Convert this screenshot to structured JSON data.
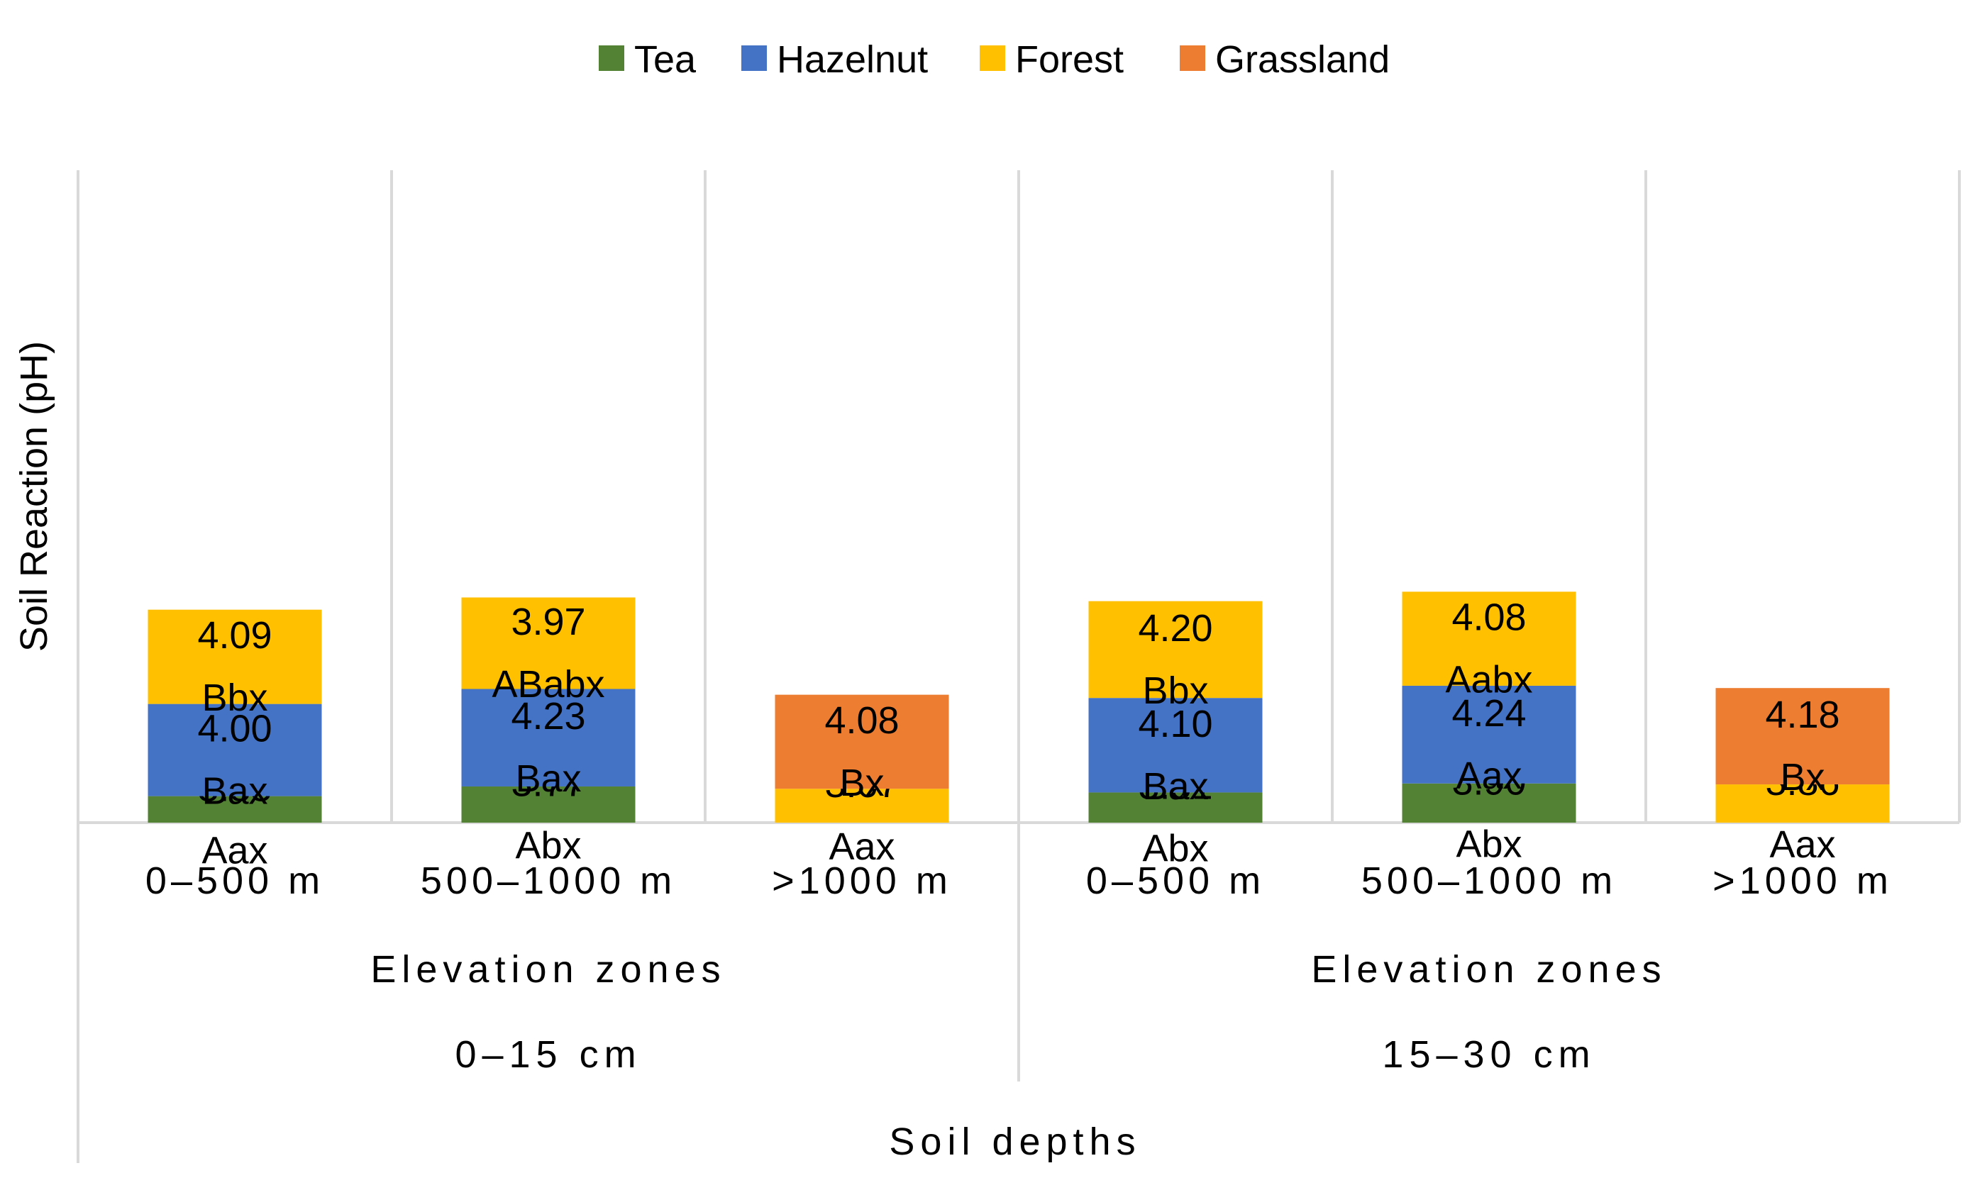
{
  "chart_data": {
    "type": "bar",
    "stacked": true,
    "ylabel": "Soil Reaction (pH)",
    "xlabel": "Soil depths",
    "legend": {
      "placement": "top-center",
      "entries": [
        {
          "name": "Tea",
          "color": "#548235"
        },
        {
          "name": "Hazelnut",
          "color": "#4472C4"
        },
        {
          "name": "Forest",
          "color": "#FFC000"
        },
        {
          "name": "Grassland",
          "color": "#ED7D31"
        }
      ]
    },
    "grid": false,
    "groups": [
      {
        "depth": "0–15 cm",
        "zone_title": "Elevation zones",
        "categories": [
          {
            "label": "0–500 m",
            "segments": [
              {
                "series": "Tea",
                "value": 3.35,
                "value_label": "3.35",
                "letters": "Aax"
              },
              {
                "series": "Hazelnut",
                "value": 4.0,
                "value_label": "4.00",
                "letters": "Bax"
              },
              {
                "series": "Forest",
                "value": 4.09,
                "value_label": "4.09",
                "letters": "Bbx"
              }
            ]
          },
          {
            "label": "500–1000 m",
            "segments": [
              {
                "series": "Tea",
                "value": 3.77,
                "value_label": "3.77",
                "letters": "Abx"
              },
              {
                "series": "Hazelnut",
                "value": 4.23,
                "value_label": "4.23",
                "letters": "Bax"
              },
              {
                "series": "Forest",
                "value": 3.97,
                "value_label": "3.97",
                "letters": "ABabx"
              }
            ]
          },
          {
            "label": ">1000 m",
            "segments": [
              {
                "series": "Forest",
                "value": 3.67,
                "value_label": "3.67",
                "letters": "Aax"
              },
              {
                "series": "Grassland",
                "value": 4.08,
                "value_label": "4.08",
                "letters": "Bx"
              }
            ]
          }
        ]
      },
      {
        "depth": "15–30 cm",
        "zone_title": "Elevation zones",
        "categories": [
          {
            "label": "0–500 m",
            "segments": [
              {
                "series": "Tea",
                "value": 3.51,
                "value_label": "3.51",
                "letters": "Abx"
              },
              {
                "series": "Hazelnut",
                "value": 4.1,
                "value_label": "4.10",
                "letters": "Bax"
              },
              {
                "series": "Forest",
                "value": 4.2,
                "value_label": "4.20",
                "letters": "Bbx"
              }
            ]
          },
          {
            "label": "500–1000 m",
            "segments": [
              {
                "series": "Tea",
                "value": 3.9,
                "value_label": "3.90",
                "letters": "Abx"
              },
              {
                "series": "Hazelnut",
                "value": 4.24,
                "value_label": "4.24",
                "letters": "Aax"
              },
              {
                "series": "Forest",
                "value": 4.08,
                "value_label": "4.08",
                "letters": "Aabx"
              }
            ]
          },
          {
            "label": ">1000 m",
            "segments": [
              {
                "series": "Forest",
                "value": 3.86,
                "value_label": "3.86",
                "letters": "Aax"
              },
              {
                "series": "Grassland",
                "value": 4.18,
                "value_label": "4.18",
                "letters": "Bx"
              }
            ]
          }
        ]
      }
    ]
  }
}
